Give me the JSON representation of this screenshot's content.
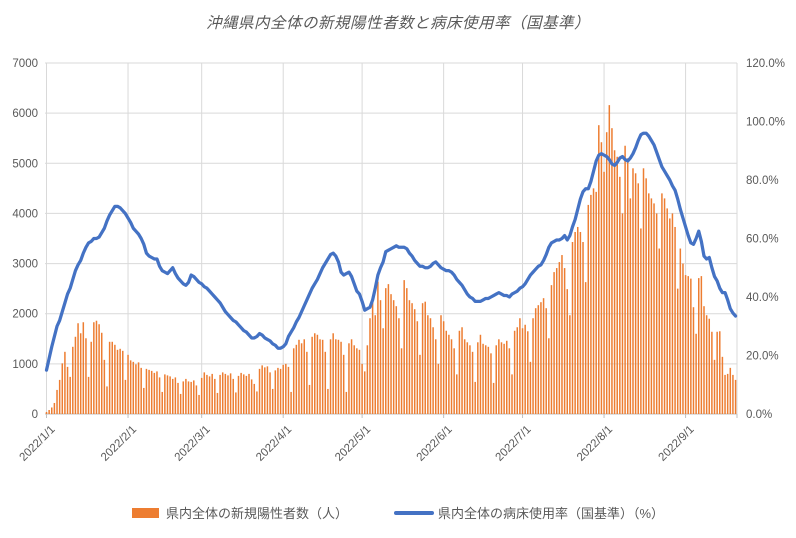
{
  "chart_data": {
    "type": "combo-bar-line",
    "title": "沖縄県内全体の新規陽性者数と病床使用率（国基準）",
    "grid": true,
    "legend_position": "bottom",
    "colors": {
      "bar": "#ED7D31",
      "line": "#4472C4",
      "grid": "#D9D9D9",
      "axis": "#BFBFBF",
      "text": "#595959"
    },
    "x_axis": {
      "tick_labels": [
        "2022/1/1",
        "2022/2/1",
        "2022/3/1",
        "2022/4/1",
        "2022/5/1",
        "2022/6/1",
        "2022/7/1",
        "2022/8/1",
        "2022/9/1"
      ],
      "tick_day_index": [
        0,
        31,
        59,
        90,
        120,
        151,
        181,
        212,
        243
      ]
    },
    "left_axis": {
      "min": 0,
      "max": 7000,
      "step": 1000,
      "tick_labels": [
        "0",
        "1000",
        "2000",
        "3000",
        "4000",
        "5000",
        "6000",
        "7000"
      ]
    },
    "right_axis": {
      "min": 0,
      "max": 120,
      "step": 20,
      "tick_labels": [
        "0.0%",
        "20.0%",
        "40.0%",
        "60.0%",
        "80.0%",
        "100.0%",
        "120.0%"
      ]
    },
    "series": [
      {
        "name": "県内全体の新規陽性者数（人）",
        "type": "bar",
        "axis": "left",
        "color": "#ED7D31",
        "values": [
          40,
          80,
          130,
          220,
          480,
          680,
          1010,
          1240,
          940,
          740,
          1340,
          1540,
          1810,
          1610,
          1830,
          1510,
          740,
          1440,
          1830,
          1860,
          1790,
          1620,
          1080,
          550,
          1440,
          1440,
          1380,
          1280,
          1300,
          1260,
          680,
          1180,
          1070,
          1040,
          990,
          1030,
          920,
          520,
          900,
          880,
          860,
          820,
          850,
          730,
          440,
          790,
          770,
          750,
          700,
          730,
          620,
          400,
          650,
          700,
          650,
          640,
          670,
          570,
          380,
          720,
          830,
          780,
          750,
          800,
          700,
          420,
          780,
          830,
          800,
          770,
          810,
          700,
          430,
          760,
          820,
          790,
          760,
          800,
          690,
          600,
          450,
          900,
          970,
          930,
          950,
          830,
          500,
          870,
          920,
          900,
          980,
          1000,
          940,
          440,
          1310,
          1380,
          1480,
          1410,
          1490,
          1240,
          580,
          1540,
          1610,
          1580,
          1490,
          1480,
          1240,
          500,
          1490,
          1610,
          1490,
          1480,
          1440,
          1180,
          440,
          1410,
          1490,
          1370,
          1310,
          1280,
          1000,
          850,
          1370,
          1910,
          2310,
          1970,
          2640,
          2270,
          1710,
          2510,
          2590,
          2390,
          2270,
          2150,
          1910,
          1310,
          2670,
          2510,
          2270,
          2210,
          2090,
          1850,
          1180,
          2210,
          2240,
          1970,
          1910,
          1730,
          1490,
          1000,
          1970,
          1850,
          1660,
          1580,
          1490,
          1310,
          790,
          1660,
          1730,
          1490,
          1430,
          1370,
          1240,
          640,
          1430,
          1580,
          1400,
          1370,
          1340,
          1210,
          620,
          1370,
          1490,
          1430,
          1400,
          1460,
          1310,
          790,
          1660,
          1730,
          1910,
          1710,
          1780,
          1650,
          1040,
          1910,
          2110,
          2170,
          2230,
          2310,
          2110,
          1510,
          2570,
          2830,
          2910,
          3030,
          3170,
          2910,
          2490,
          1970,
          3430,
          3630,
          3730,
          3630,
          3430,
          2630,
          4170,
          4370,
          4500,
          4430,
          5760,
          5420,
          4830,
          5620,
          6160,
          5700,
          5260,
          5130,
          4730,
          4000,
          5350,
          5100,
          4300,
          4900,
          4800,
          4600,
          3700,
          4900,
          4700,
          4400,
          4300,
          4200,
          4000,
          3300,
          4400,
          4300,
          4100,
          3900,
          4000,
          3730,
          2500,
          3300,
          3000,
          2770,
          2750,
          2700,
          2130,
          1600,
          2710,
          2750,
          2150,
          1970,
          1900,
          1640,
          1080,
          1640,
          1650,
          1140,
          780,
          800,
          920,
          780,
          680
        ]
      },
      {
        "name": "県内全体の病床使用率（国基準）（%）",
        "type": "line",
        "axis": "right",
        "color": "#4472C4",
        "values": [
          15,
          19,
          23,
          26.5,
          30,
          32,
          35,
          38,
          41,
          43,
          46,
          49,
          51,
          52.5,
          55,
          57,
          58.5,
          59,
          60,
          60,
          60.5,
          62,
          63.5,
          66,
          68,
          69.5,
          71,
          71,
          70.5,
          69.5,
          68.5,
          67,
          65.5,
          63.5,
          62.5,
          61.5,
          60,
          58,
          55,
          54,
          53.5,
          53,
          53,
          50.5,
          49,
          48.5,
          48,
          49,
          50,
          48,
          46.5,
          45.5,
          44.5,
          44,
          45,
          47.5,
          47,
          46,
          45,
          44.5,
          43.5,
          43,
          42,
          41,
          40,
          39,
          38,
          36.5,
          35,
          34,
          33,
          32,
          31.5,
          30.5,
          29.5,
          28.5,
          28,
          27,
          26,
          26,
          26.5,
          27.5,
          27,
          26,
          25.5,
          25,
          24,
          23.5,
          22.5,
          22.5,
          23,
          24,
          26.5,
          28,
          29.5,
          31.5,
          33,
          35,
          37,
          39,
          41,
          43,
          44.5,
          46,
          48,
          50,
          51.5,
          53,
          54.5,
          55,
          54,
          52,
          48.5,
          47.5,
          48,
          48.5,
          47,
          44.5,
          42,
          41,
          38.5,
          35.5,
          36,
          36.5,
          39,
          43,
          47.5,
          50,
          52,
          55.5,
          56,
          56.5,
          57,
          57.5,
          57,
          57,
          57,
          56.5,
          55,
          54,
          52.5,
          51.5,
          50.5,
          50.5,
          50,
          50,
          50.5,
          51.5,
          52,
          51,
          50,
          49.5,
          49,
          49,
          48.5,
          47.5,
          46,
          45,
          44,
          42.5,
          41,
          40,
          39.5,
          38.5,
          38.5,
          38.5,
          39,
          39.5,
          39.5,
          40,
          40.5,
          41,
          41.5,
          41,
          40.5,
          40.5,
          40,
          41,
          41.5,
          42,
          43,
          43.5,
          44.5,
          46,
          47.5,
          48.5,
          49.5,
          50.5,
          51,
          52.5,
          54.5,
          57,
          58.5,
          59,
          59.5,
          59.5,
          60,
          61,
          59.5,
          61,
          64,
          66.5,
          70,
          73.5,
          76,
          77,
          77,
          79.5,
          83,
          86.5,
          88.5,
          89,
          88.5,
          88,
          87,
          85.5,
          85,
          86,
          87.5,
          88,
          87,
          86.5,
          87.5,
          89,
          91,
          93.5,
          95.5,
          96,
          96,
          95,
          93.5,
          92,
          89.5,
          87,
          84.5,
          83,
          81.5,
          80,
          78,
          76.5,
          73.5,
          70,
          67,
          64,
          61,
          58.5,
          58,
          60,
          62.5,
          59,
          54,
          53,
          53.5,
          50,
          47,
          45.5,
          43,
          41.5,
          41.5,
          39,
          36,
          34.5,
          33.5
        ]
      }
    ]
  }
}
